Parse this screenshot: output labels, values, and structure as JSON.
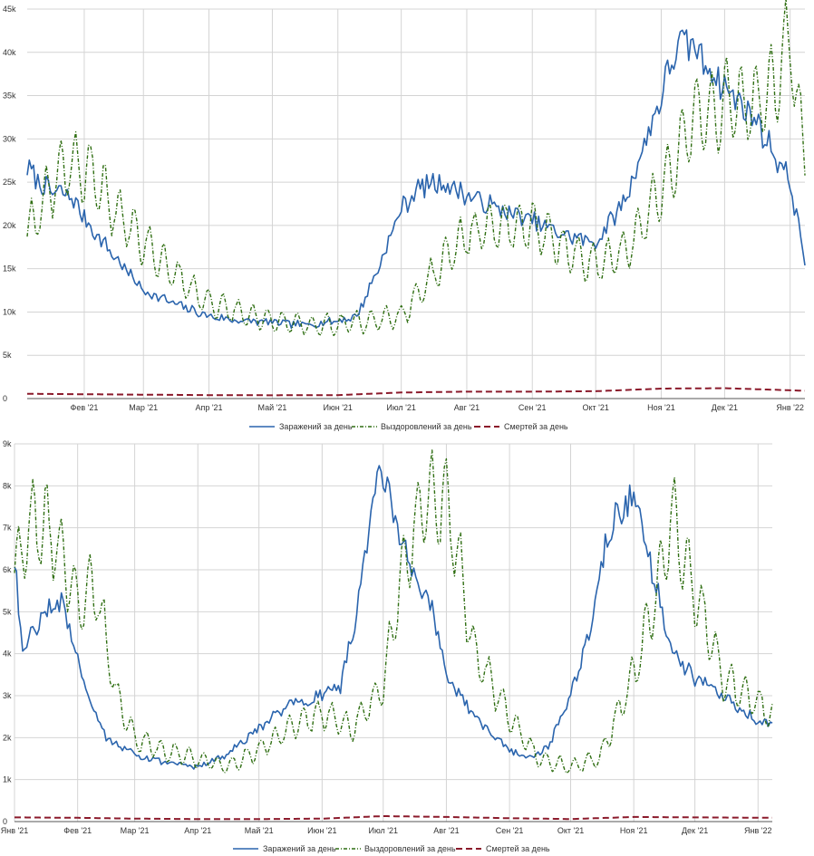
{
  "legend": {
    "infections": "Заражений за день",
    "recoveries": "Выздоровлений за день",
    "deaths": "Смертей за день"
  },
  "colors": {
    "infections": "#2a64ad",
    "recoveries": "#2f6e12",
    "deaths": "#8b1a2b",
    "grid": "#d4d4d4",
    "axis": "#555555"
  },
  "chart_data": [
    {
      "type": "line",
      "grid": true,
      "legend_position": "bottom",
      "x_ticks": [
        "Фев '21",
        "Мар '21",
        "Апр '21",
        "Май '21",
        "Июн '21",
        "Июл '21",
        "Авг '21",
        "Сен '21",
        "Окт '21",
        "Ноя '21",
        "Дек '21",
        "Янв '22"
      ],
      "y_ticks": [
        "0",
        "5k",
        "10k",
        "15k",
        "20k",
        "25k",
        "30k",
        "35k",
        "40k",
        "45k"
      ],
      "ylim": [
        0,
        45000
      ],
      "xlim": [
        "2021-01-05",
        "2022-01-08"
      ],
      "series": [
        {
          "name": "Заражений за день",
          "x": [
            "2021-01-05",
            "2021-01-15",
            "2021-01-25",
            "2021-02-05",
            "2021-02-15",
            "2021-03-01",
            "2021-03-15",
            "2021-04-01",
            "2021-04-15",
            "2021-05-01",
            "2021-05-15",
            "2021-06-01",
            "2021-06-10",
            "2021-06-20",
            "2021-07-01",
            "2021-07-10",
            "2021-07-20",
            "2021-08-01",
            "2021-08-15",
            "2021-09-01",
            "2021-09-15",
            "2021-10-01",
            "2021-10-15",
            "2021-11-01",
            "2021-11-08",
            "2021-11-15",
            "2021-12-01",
            "2021-12-15",
            "2022-01-01",
            "2022-01-08"
          ],
          "values": [
            26500,
            24000,
            23500,
            19500,
            16500,
            12500,
            11000,
            9500,
            9000,
            8800,
            8500,
            9000,
            9500,
            15000,
            22000,
            24500,
            25000,
            23500,
            22000,
            20500,
            19000,
            18000,
            23000,
            35000,
            40500,
            41000,
            36000,
            32500,
            25000,
            16000
          ]
        },
        {
          "name": "Выздоровлений за день",
          "x": [
            "2021-01-05",
            "2021-01-15",
            "2021-01-25",
            "2021-02-05",
            "2021-02-15",
            "2021-03-01",
            "2021-03-15",
            "2021-04-01",
            "2021-04-15",
            "2021-05-01",
            "2021-05-15",
            "2021-06-01",
            "2021-06-15",
            "2021-07-01",
            "2021-07-15",
            "2021-08-01",
            "2021-08-15",
            "2021-09-01",
            "2021-09-15",
            "2021-10-01",
            "2021-10-15",
            "2021-11-01",
            "2021-11-15",
            "2021-12-01",
            "2021-12-15",
            "2021-12-25",
            "2022-01-01",
            "2022-01-08"
          ],
          "values": [
            19000,
            24000,
            27500,
            25500,
            22000,
            18000,
            14500,
            11000,
            10000,
            9000,
            8500,
            8500,
            9000,
            9500,
            14000,
            19000,
            20000,
            20000,
            17500,
            15500,
            17000,
            24000,
            32000,
            34000,
            34000,
            36000,
            42000,
            27000
          ]
        },
        {
          "name": "Смертей за день",
          "x": [
            "2021-01-05",
            "2021-02-01",
            "2021-03-01",
            "2021-04-01",
            "2021-05-01",
            "2021-06-01",
            "2021-07-01",
            "2021-08-01",
            "2021-09-01",
            "2021-10-01",
            "2021-11-01",
            "2021-12-01",
            "2022-01-08"
          ],
          "values": [
            550,
            500,
            450,
            400,
            380,
            400,
            700,
            800,
            800,
            850,
            1150,
            1200,
            900
          ]
        }
      ]
    },
    {
      "type": "line",
      "grid": true,
      "legend_position": "bottom",
      "x_ticks": [
        "Янв '21",
        "Фев '21",
        "Мар '21",
        "Апр '21",
        "Май '21",
        "Июн '21",
        "Июл '21",
        "Авг '21",
        "Сен '21",
        "Окт '21",
        "Ноя '21",
        "Дек '21",
        "Янв '22"
      ],
      "y_ticks": [
        "0",
        "1k",
        "2k",
        "3k",
        "4k",
        "5k",
        "6k",
        "7k",
        "8k",
        "9k"
      ],
      "ylim": [
        0,
        9000
      ],
      "xlim": [
        "2021-01-01",
        "2022-01-08"
      ],
      "series": [
        {
          "name": "Заражений за день",
          "x": [
            "2021-01-01",
            "2021-01-05",
            "2021-01-15",
            "2021-01-25",
            "2021-02-05",
            "2021-02-15",
            "2021-03-01",
            "2021-03-15",
            "2021-04-01",
            "2021-04-15",
            "2021-05-01",
            "2021-05-15",
            "2021-06-01",
            "2021-06-10",
            "2021-06-20",
            "2021-06-28",
            "2021-07-05",
            "2021-07-15",
            "2021-07-25",
            "2021-08-01",
            "2021-08-15",
            "2021-09-01",
            "2021-09-10",
            "2021-09-20",
            "2021-10-01",
            "2021-10-10",
            "2021-10-20",
            "2021-11-01",
            "2021-11-10",
            "2021-11-20",
            "2021-12-01",
            "2021-12-15",
            "2022-01-01",
            "2022-01-08"
          ],
          "values": [
            6200,
            4000,
            5000,
            5200,
            3200,
            2000,
            1600,
            1400,
            1300,
            1600,
            2200,
            2800,
            3000,
            3200,
            5500,
            8500,
            7500,
            6000,
            5000,
            3500,
            2500,
            1700,
            1500,
            1800,
            3000,
            4500,
            7000,
            7800,
            6000,
            4000,
            3400,
            3000,
            2400,
            2300
          ]
        },
        {
          "name": "Выздоровлений за день",
          "x": [
            "2021-01-01",
            "2021-01-10",
            "2021-01-20",
            "2021-02-01",
            "2021-02-10",
            "2021-02-20",
            "2021-03-01",
            "2021-03-15",
            "2021-04-01",
            "2021-04-15",
            "2021-05-01",
            "2021-05-15",
            "2021-06-01",
            "2021-06-15",
            "2021-07-01",
            "2021-07-10",
            "2021-07-20",
            "2021-08-01",
            "2021-08-15",
            "2021-09-01",
            "2021-09-15",
            "2021-10-01",
            "2021-10-15",
            "2021-11-01",
            "2021-11-10",
            "2021-11-20",
            "2021-12-01",
            "2021-12-15",
            "2022-01-01",
            "2022-01-08"
          ],
          "values": [
            6000,
            7200,
            6800,
            5200,
            5600,
            3000,
            2000,
            1700,
            1500,
            1300,
            1700,
            2200,
            2600,
            2200,
            3200,
            6000,
            7500,
            7800,
            4000,
            2500,
            1500,
            1300,
            1500,
            3500,
            5000,
            7200,
            5500,
            3400,
            2800,
            2500
          ]
        },
        {
          "name": "Смертей за день",
          "x": [
            "2021-01-01",
            "2021-02-01",
            "2021-03-01",
            "2021-04-01",
            "2021-05-01",
            "2021-06-01",
            "2021-07-01",
            "2021-08-01",
            "2021-09-01",
            "2021-10-01",
            "2021-11-01",
            "2021-12-01",
            "2022-01-08"
          ],
          "values": [
            100,
            90,
            70,
            60,
            60,
            70,
            130,
            110,
            80,
            60,
            110,
            100,
            90
          ]
        }
      ]
    }
  ]
}
